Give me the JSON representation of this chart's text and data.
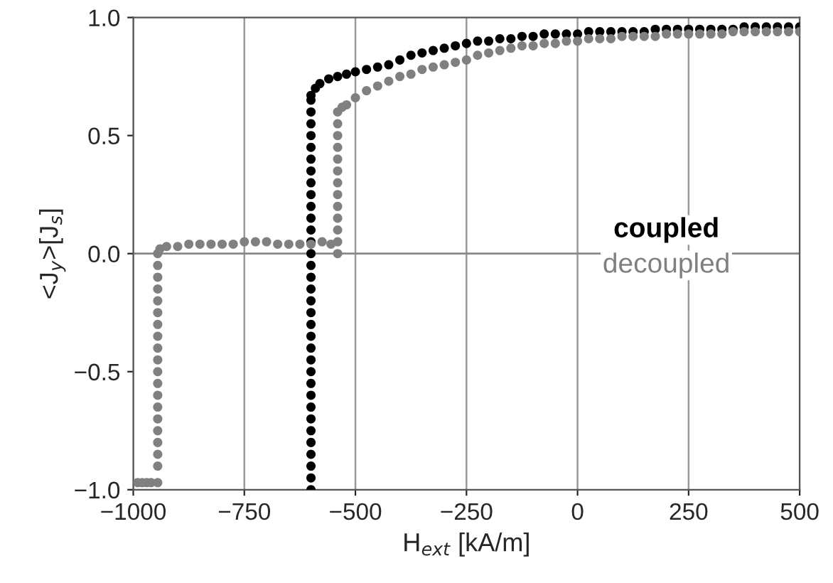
{
  "chart_data": {
    "type": "scatter",
    "xlabel": "H$_{ext}$ [kA/m]",
    "ylabel": "<J$_{y}$>[J$_{s}$]",
    "xlim": [
      -1000,
      500
    ],
    "xticks": [
      {
        "value": -1000,
        "label": "−1000"
      },
      {
        "value": -750,
        "label": "−750"
      },
      {
        "value": -500,
        "label": "−500"
      },
      {
        "value": -250,
        "label": "−250"
      },
      0,
      250,
      500
    ],
    "ylim": [
      -1.0,
      1.0
    ],
    "yticks": [
      {
        "value": -1.0,
        "label": "−1.0"
      },
      {
        "value": -0.5,
        "label": "−0.5"
      },
      {
        "value": 0.0,
        "label": "0.0"
      },
      {
        "value": 0.5,
        "label": "0.5"
      },
      {
        "value": 1.0,
        "label": "1.0"
      }
    ],
    "grid": "x",
    "marker": "circle",
    "ref_lines": [
      {
        "axis": "y",
        "value": 0.0,
        "color": "#888888"
      }
    ],
    "series": [
      {
        "name": "coupled",
        "color": "#000000",
        "x": [
          -600,
          -600,
          -600,
          -600,
          -600,
          -600,
          -600,
          -600,
          -600,
          -600,
          -600,
          -600,
          -600,
          -600,
          -600,
          -600,
          -600,
          -600,
          -600,
          -600,
          -600,
          -600,
          -600,
          -600,
          -600,
          -600,
          -600,
          -600,
          -600,
          -600,
          -600,
          -600,
          -600,
          -600,
          -600,
          -590,
          -580,
          -560,
          -540,
          -520,
          -500,
          -475,
          -450,
          -425,
          -400,
          -375,
          -350,
          -325,
          -300,
          -275,
          -250,
          -225,
          -200,
          -175,
          -150,
          -125,
          -100,
          -75,
          -50,
          -25,
          0,
          25,
          50,
          75,
          100,
          125,
          150,
          175,
          200,
          225,
          250,
          275,
          300,
          325,
          350,
          375,
          400,
          425,
          450,
          475,
          500
        ],
        "values": [
          -1.0,
          -0.95,
          -0.9,
          -0.85,
          -0.8,
          -0.75,
          -0.7,
          -0.65,
          -0.6,
          -0.55,
          -0.5,
          -0.45,
          -0.4,
          -0.35,
          -0.3,
          -0.25,
          -0.2,
          -0.15,
          -0.1,
          -0.05,
          0.0,
          0.05,
          0.1,
          0.15,
          0.2,
          0.25,
          0.3,
          0.35,
          0.4,
          0.45,
          0.5,
          0.55,
          0.6,
          0.65,
          0.67,
          0.7,
          0.72,
          0.74,
          0.75,
          0.76,
          0.77,
          0.78,
          0.79,
          0.8,
          0.82,
          0.84,
          0.85,
          0.86,
          0.87,
          0.88,
          0.89,
          0.9,
          0.9,
          0.91,
          0.91,
          0.92,
          0.92,
          0.93,
          0.93,
          0.93,
          0.93,
          0.94,
          0.94,
          0.94,
          0.94,
          0.94,
          0.94,
          0.95,
          0.95,
          0.95,
          0.95,
          0.95,
          0.95,
          0.95,
          0.95,
          0.96,
          0.96,
          0.96,
          0.96,
          0.96,
          0.96
        ]
      },
      {
        "name": "decoupled",
        "color": "#808080",
        "x": [
          -990,
          -980,
          -970,
          -960,
          -945,
          -945,
          -945,
          -945,
          -945,
          -945,
          -945,
          -945,
          -945,
          -945,
          -945,
          -945,
          -945,
          -945,
          -945,
          -945,
          -945,
          -945,
          -945,
          -945,
          -940,
          -925,
          -900,
          -875,
          -850,
          -825,
          -800,
          -775,
          -750,
          -725,
          -700,
          -675,
          -650,
          -625,
          -600,
          -575,
          -555,
          -540,
          -540,
          -540,
          -540,
          -540,
          -540,
          -540,
          -540,
          -540,
          -540,
          -540,
          -540,
          -540,
          -530,
          -520,
          -500,
          -475,
          -450,
          -425,
          -400,
          -375,
          -350,
          -325,
          -300,
          -275,
          -250,
          -225,
          -200,
          -175,
          -150,
          -125,
          -100,
          -75,
          -50,
          -25,
          0,
          25,
          50,
          75,
          100,
          125,
          150,
          175,
          200,
          225,
          250,
          275,
          300,
          325,
          350,
          375,
          400,
          425,
          450,
          475,
          500
        ],
        "values": [
          -0.97,
          -0.97,
          -0.97,
          -0.97,
          -0.97,
          -0.9,
          -0.85,
          -0.8,
          -0.75,
          -0.7,
          -0.65,
          -0.6,
          -0.55,
          -0.5,
          -0.45,
          -0.4,
          -0.35,
          -0.3,
          -0.25,
          -0.2,
          -0.15,
          -0.1,
          -0.05,
          0.0,
          0.02,
          0.03,
          0.03,
          0.04,
          0.04,
          0.04,
          0.04,
          0.04,
          0.05,
          0.05,
          0.05,
          0.04,
          0.04,
          0.04,
          0.04,
          0.05,
          0.04,
          0.0,
          0.05,
          0.1,
          0.15,
          0.2,
          0.25,
          0.3,
          0.35,
          0.4,
          0.45,
          0.5,
          0.55,
          0.6,
          0.62,
          0.63,
          0.66,
          0.69,
          0.71,
          0.73,
          0.75,
          0.76,
          0.78,
          0.79,
          0.8,
          0.81,
          0.82,
          0.84,
          0.85,
          0.86,
          0.87,
          0.88,
          0.88,
          0.89,
          0.89,
          0.9,
          0.9,
          0.91,
          0.91,
          0.91,
          0.92,
          0.92,
          0.92,
          0.92,
          0.93,
          0.93,
          0.93,
          0.93,
          0.93,
          0.93,
          0.94,
          0.94,
          0.94,
          0.94,
          0.94,
          0.94,
          0.94
        ]
      }
    ]
  }
}
